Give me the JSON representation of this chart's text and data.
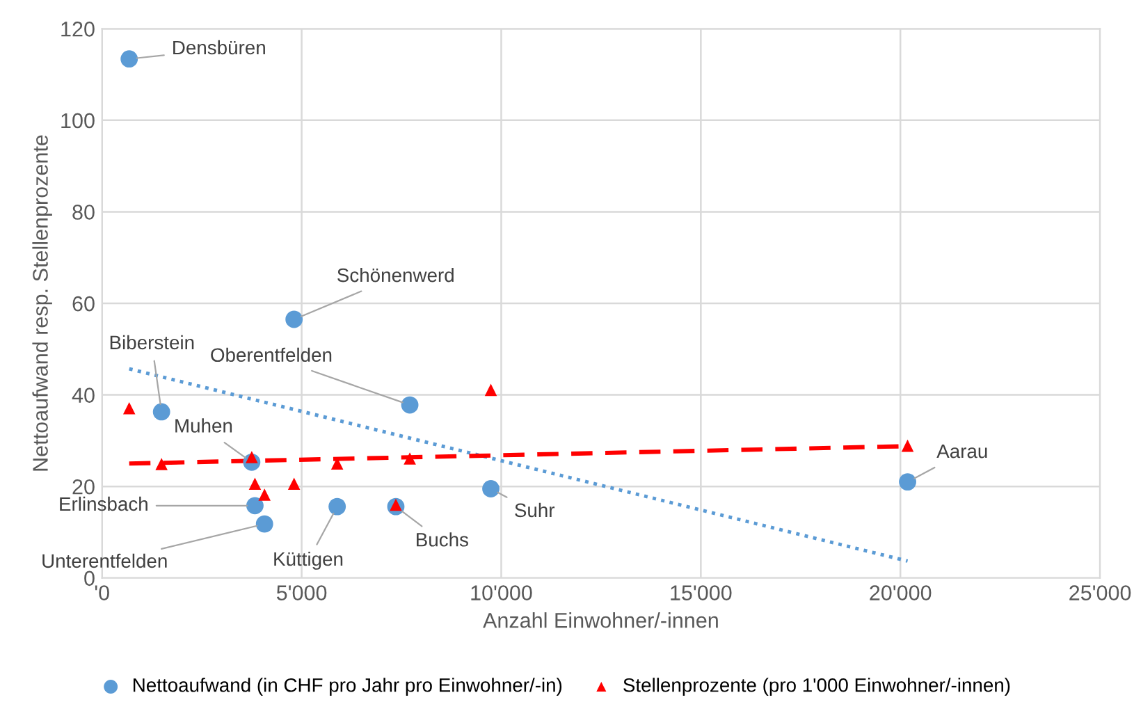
{
  "chart_data": {
    "type": "scatter",
    "xlabel": "Anzahl Einwohner/-innen",
    "ylabel": "Nettoaufwand resp. Stellenprozente",
    "xlim": [
      0,
      25000
    ],
    "xticks": [
      {
        "value": 0,
        "label": "'0"
      },
      {
        "value": 5000,
        "label": "5'000"
      },
      {
        "value": 10000,
        "label": "10'000"
      },
      {
        "value": 15000,
        "label": "15'000"
      },
      {
        "value": 20000,
        "label": "20'000"
      },
      {
        "value": 25000,
        "label": "25'000"
      }
    ],
    "ylim": [
      0,
      120
    ],
    "yticks": [
      0,
      20,
      40,
      60,
      80,
      100,
      120
    ],
    "grid": true,
    "legend": "bottom",
    "series": [
      {
        "name": "Nettoaufwand (in CHF pro Jahr pro Einwohner/-in)",
        "color": "#5b9bd5",
        "marker": "circle",
        "x": [
          680,
          4810,
          1490,
          7710,
          3750,
          3830,
          4070,
          5890,
          7360,
          9740,
          20180
        ],
        "values": [
          113.4,
          56.5,
          36.3,
          37.8,
          25.3,
          15.8,
          11.8,
          15.6,
          15.6,
          19.5,
          21.0
        ]
      },
      {
        "name": "Stellenprozente (pro 1'000 Einwohner/-innen)",
        "color": "#ff0000",
        "marker": "triangle",
        "x": [
          680,
          1490,
          3750,
          3830,
          4070,
          4810,
          5890,
          7360,
          7710,
          9740,
          20180
        ],
        "values": [
          37.1,
          24.9,
          26.4,
          20.6,
          18.2,
          20.6,
          25.0,
          16.0,
          26.1,
          41.1,
          28.9
        ]
      },
      {
        "type": "line",
        "color": "#5b9bd5",
        "line_style": "dotted",
        "x": [
          680,
          20180
        ],
        "values": [
          45.7,
          3.7
        ]
      },
      {
        "type": "line",
        "color": "#ff0000",
        "line_style": "dashed",
        "x": [
          680,
          20180
        ],
        "values": [
          25.0,
          28.8
        ]
      }
    ],
    "annotations": [
      {
        "text": "Densbüren",
        "x": 680,
        "y": 113.4
      },
      {
        "text": "Schönenwerd",
        "x": 4810,
        "y": 56.5
      },
      {
        "text": "Biberstein",
        "x": 1490,
        "y": 36.3
      },
      {
        "text": "Oberentfelden",
        "x": 7710,
        "y": 37.8
      },
      {
        "text": "Muhen",
        "x": 3750,
        "y": 25.3
      },
      {
        "text": "Erlinsbach",
        "x": 3830,
        "y": 15.8
      },
      {
        "text": "Unterentfelden",
        "x": 4070,
        "y": 11.8
      },
      {
        "text": "Küttigen",
        "x": 5890,
        "y": 15.6
      },
      {
        "text": "Buchs",
        "x": 7360,
        "y": 15.6
      },
      {
        "text": "Suhr",
        "x": 9740,
        "y": 19.5
      },
      {
        "text": "Aarau",
        "x": 20180,
        "y": 21.0
      }
    ]
  }
}
